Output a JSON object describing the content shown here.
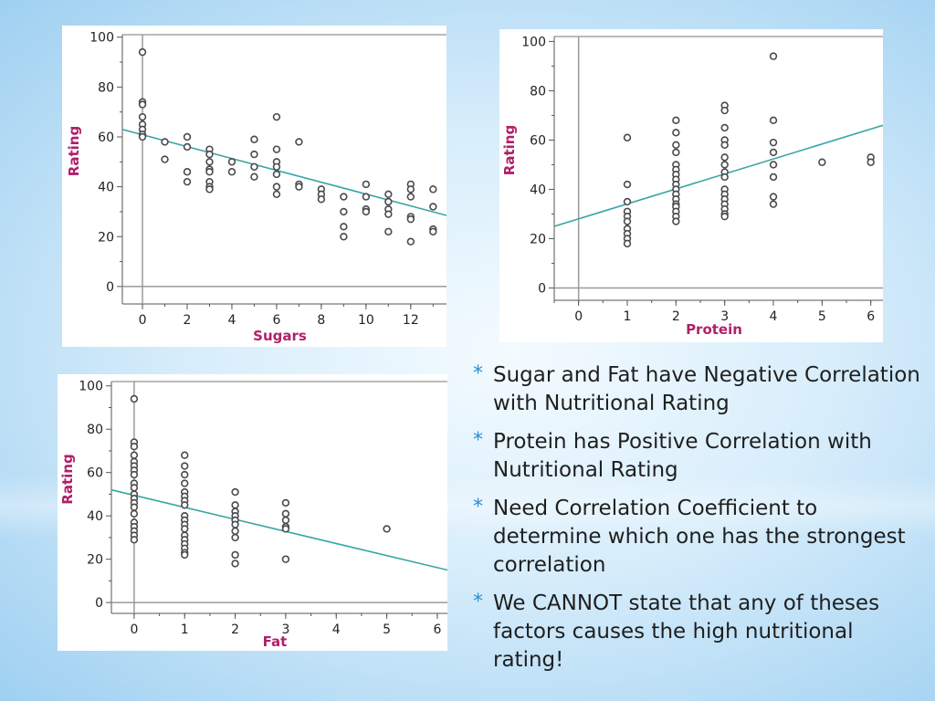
{
  "chart_data": [
    {
      "id": "sugars",
      "type": "scatter",
      "title": "",
      "xlabel": "Sugars",
      "ylabel": "Rating",
      "xlim": [
        -0.9,
        13.6
      ],
      "ylim": [
        -7,
        101
      ],
      "xticks": [
        "0",
        "2",
        "4",
        "6",
        "8",
        "10",
        "12"
      ],
      "xtick_values": [
        0,
        2,
        4,
        6,
        8,
        10,
        12
      ],
      "yticks": [
        "0",
        "20",
        "40",
        "60",
        "80",
        "100"
      ],
      "ytick_values": [
        0,
        20,
        40,
        60,
        80,
        100
      ],
      "trendline": [
        [
          -0.9,
          63
        ],
        [
          13.6,
          28.5
        ]
      ],
      "points": [
        [
          0,
          94
        ],
        [
          0,
          74
        ],
        [
          0,
          73
        ],
        [
          0,
          68
        ],
        [
          0,
          65
        ],
        [
          0,
          63
        ],
        [
          0,
          61
        ],
        [
          0,
          60
        ],
        [
          1,
          58
        ],
        [
          1,
          51
        ],
        [
          2,
          60
        ],
        [
          2,
          56
        ],
        [
          2,
          46
        ],
        [
          2,
          42
        ],
        [
          3,
          55
        ],
        [
          3,
          53
        ],
        [
          3,
          50
        ],
        [
          3,
          47
        ],
        [
          3,
          46
        ],
        [
          3,
          42
        ],
        [
          3,
          40
        ],
        [
          3,
          39
        ],
        [
          4,
          50
        ],
        [
          4,
          46
        ],
        [
          5,
          59
        ],
        [
          5,
          53
        ],
        [
          5,
          48
        ],
        [
          5,
          44
        ],
        [
          6,
          68
        ],
        [
          6,
          55
        ],
        [
          6,
          50
        ],
        [
          6,
          48
        ],
        [
          6,
          45
        ],
        [
          6,
          40
        ],
        [
          6,
          37
        ],
        [
          7,
          58
        ],
        [
          7,
          41
        ],
        [
          7,
          40
        ],
        [
          8,
          39
        ],
        [
          8,
          37
        ],
        [
          8,
          35
        ],
        [
          9,
          36
        ],
        [
          9,
          30
        ],
        [
          9,
          24
        ],
        [
          9,
          20
        ],
        [
          10,
          41
        ],
        [
          10,
          36
        ],
        [
          10,
          31
        ],
        [
          10,
          30
        ],
        [
          11,
          37
        ],
        [
          11,
          34
        ],
        [
          11,
          31
        ],
        [
          11,
          29
        ],
        [
          11,
          22
        ],
        [
          12,
          41
        ],
        [
          12,
          39
        ],
        [
          12,
          36
        ],
        [
          12,
          28
        ],
        [
          12,
          27
        ],
        [
          12,
          18
        ],
        [
          13,
          39
        ],
        [
          13,
          32
        ],
        [
          13,
          23
        ],
        [
          13,
          22
        ]
      ]
    },
    {
      "id": "protein",
      "type": "scatter",
      "title": "",
      "xlabel": "Protein",
      "ylabel": "Rating",
      "xlim": [
        -0.5,
        6.25
      ],
      "ylim": [
        -5,
        102
      ],
      "xticks": [
        "0",
        "1",
        "2",
        "3",
        "4",
        "5",
        "6"
      ],
      "xtick_values": [
        0,
        1,
        2,
        3,
        4,
        5,
        6
      ],
      "yticks": [
        "0",
        "20",
        "40",
        "60",
        "80",
        "100"
      ],
      "ytick_values": [
        0,
        20,
        40,
        60,
        80,
        100
      ],
      "trendline": [
        [
          -0.5,
          25
        ],
        [
          6.25,
          66
        ]
      ],
      "points": [
        [
          1,
          61
        ],
        [
          1,
          42
        ],
        [
          1,
          35
        ],
        [
          1,
          31
        ],
        [
          1,
          29
        ],
        [
          1,
          27
        ],
        [
          1,
          24
        ],
        [
          1,
          22
        ],
        [
          1,
          20
        ],
        [
          1,
          18
        ],
        [
          2,
          68
        ],
        [
          2,
          63
        ],
        [
          2,
          58
        ],
        [
          2,
          55
        ],
        [
          2,
          50
        ],
        [
          2,
          48
        ],
        [
          2,
          46
        ],
        [
          2,
          44
        ],
        [
          2,
          42
        ],
        [
          2,
          40
        ],
        [
          2,
          38
        ],
        [
          2,
          36
        ],
        [
          2,
          34
        ],
        [
          2,
          33
        ],
        [
          2,
          31
        ],
        [
          2,
          29
        ],
        [
          2,
          27
        ],
        [
          3,
          74
        ],
        [
          3,
          72
        ],
        [
          3,
          65
        ],
        [
          3,
          60
        ],
        [
          3,
          58
        ],
        [
          3,
          53
        ],
        [
          3,
          50
        ],
        [
          3,
          47
        ],
        [
          3,
          45
        ],
        [
          3,
          40
        ],
        [
          3,
          38
        ],
        [
          3,
          36
        ],
        [
          3,
          34
        ],
        [
          3,
          32
        ],
        [
          3,
          30
        ],
        [
          3,
          29
        ],
        [
          4,
          94
        ],
        [
          4,
          68
        ],
        [
          4,
          59
        ],
        [
          4,
          55
        ],
        [
          4,
          50
        ],
        [
          4,
          45
        ],
        [
          4,
          37
        ],
        [
          4,
          34
        ],
        [
          5,
          51
        ],
        [
          6,
          53
        ],
        [
          6,
          51
        ]
      ]
    },
    {
      "id": "fat",
      "type": "scatter",
      "title": "",
      "xlabel": "Fat",
      "ylabel": "Rating",
      "xlim": [
        -0.45,
        6.2
      ],
      "ylim": [
        -5,
        102
      ],
      "xticks": [
        "0",
        "1",
        "2",
        "3",
        "4",
        "5",
        "6"
      ],
      "xtick_values": [
        0,
        1,
        2,
        3,
        4,
        5,
        6
      ],
      "yticks": [
        "0",
        "20",
        "40",
        "60",
        "80",
        "100"
      ],
      "ytick_values": [
        0,
        20,
        40,
        60,
        80,
        100
      ],
      "trendline": [
        [
          -0.45,
          52
        ],
        [
          6.2,
          15
        ]
      ],
      "points": [
        [
          0,
          94
        ],
        [
          0,
          74
        ],
        [
          0,
          72
        ],
        [
          0,
          68
        ],
        [
          0,
          65
        ],
        [
          0,
          63
        ],
        [
          0,
          61
        ],
        [
          0,
          59
        ],
        [
          0,
          55
        ],
        [
          0,
          53
        ],
        [
          0,
          50
        ],
        [
          0,
          48
        ],
        [
          0,
          46
        ],
        [
          0,
          44
        ],
        [
          0,
          41
        ],
        [
          0,
          37
        ],
        [
          0,
          35
        ],
        [
          0,
          33
        ],
        [
          0,
          31
        ],
        [
          0,
          29
        ],
        [
          1,
          68
        ],
        [
          1,
          63
        ],
        [
          1,
          59
        ],
        [
          1,
          55
        ],
        [
          1,
          51
        ],
        [
          1,
          49
        ],
        [
          1,
          47
        ],
        [
          1,
          45
        ],
        [
          1,
          40
        ],
        [
          1,
          38
        ],
        [
          1,
          36
        ],
        [
          1,
          34
        ],
        [
          1,
          31
        ],
        [
          1,
          29
        ],
        [
          1,
          27
        ],
        [
          1,
          25
        ],
        [
          1,
          23
        ],
        [
          1,
          22
        ],
        [
          2,
          51
        ],
        [
          2,
          45
        ],
        [
          2,
          42
        ],
        [
          2,
          40
        ],
        [
          2,
          38
        ],
        [
          2,
          36
        ],
        [
          2,
          33
        ],
        [
          2,
          30
        ],
        [
          2,
          22
        ],
        [
          2,
          18
        ],
        [
          3,
          46
        ],
        [
          3,
          41
        ],
        [
          3,
          38
        ],
        [
          3,
          35
        ],
        [
          3,
          34
        ],
        [
          3,
          20
        ],
        [
          5,
          34
        ]
      ]
    }
  ],
  "colors": {
    "point_stroke": "#4a4a4a",
    "trendline": "#3aa6a6",
    "axis_label": "#b0206a",
    "axis": "#9a9a9a",
    "tick_text": "#222222",
    "bullet_star": "#2a8fd4"
  },
  "bullets": [
    {
      "marker": "*",
      "text": "Sugar and Fat have Negative Correlation with Nutritional Rating"
    },
    {
      "marker": "*",
      "text": "Protein has Positive Correlation with Nutritional Rating"
    },
    {
      "marker": "*",
      "text": "Need Correlation Coefficient to determine which one has the strongest correlation"
    },
    {
      "marker": "*",
      "text": "We CANNOT state that any of theses factors causes the high nutritional rating!"
    }
  ]
}
